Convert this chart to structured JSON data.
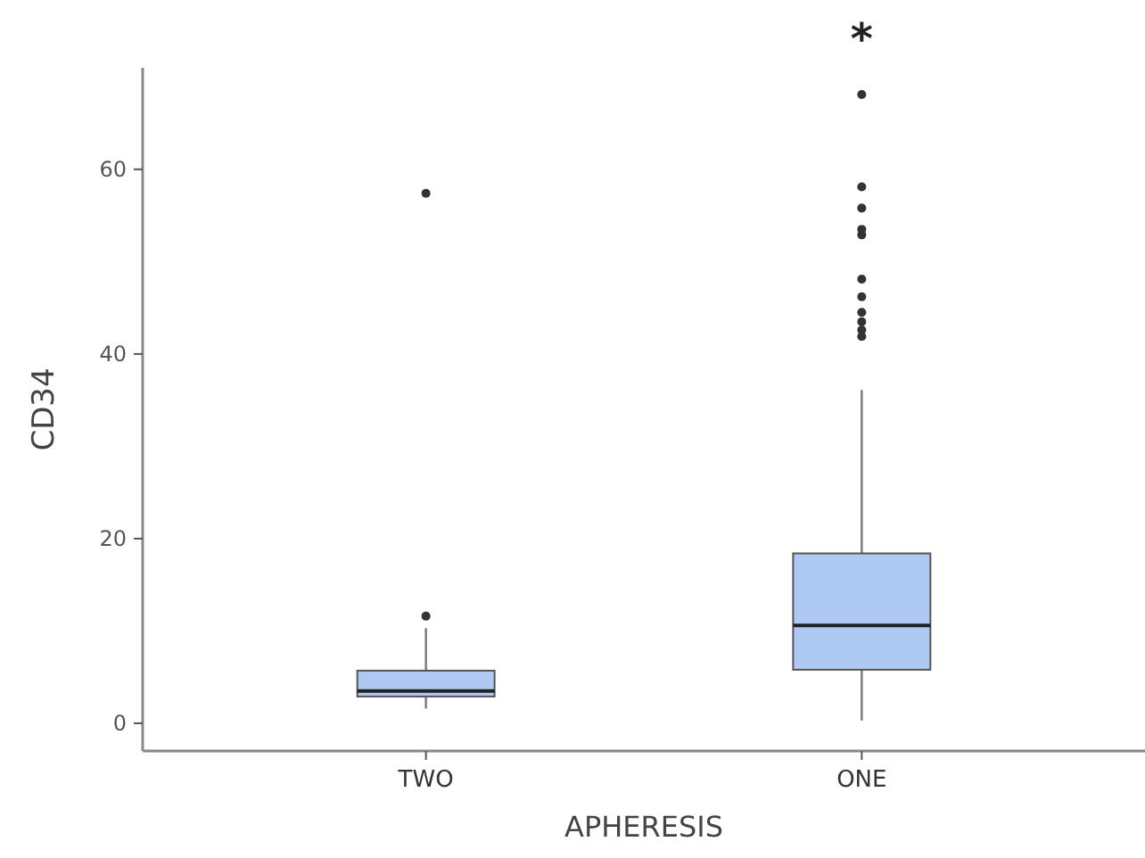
{
  "chart_data": {
    "type": "box",
    "xlabel": "APHERESIS",
    "ylabel": "CD34",
    "categories": [
      "TWO",
      "ONE"
    ],
    "boxes": [
      {
        "low": 1.6,
        "q1": 2.9,
        "median": 3.5,
        "q3": 5.7,
        "high": 10.3,
        "outliers": [
          11.6,
          57.4
        ]
      },
      {
        "low": 0.3,
        "q1": 5.8,
        "median": 10.6,
        "q3": 18.4,
        "high": 36.1,
        "outliers": [
          41.9,
          42.6,
          43.5,
          44.5,
          46.2,
          48.1,
          52.9,
          53.5,
          55.8,
          58.1,
          68.1
        ]
      }
    ],
    "color": "#aec9f2",
    "ylim": [
      -3,
      71
    ],
    "yticks": [
      0,
      20,
      40,
      60
    ],
    "grid": false,
    "annotations": [
      "*"
    ]
  }
}
